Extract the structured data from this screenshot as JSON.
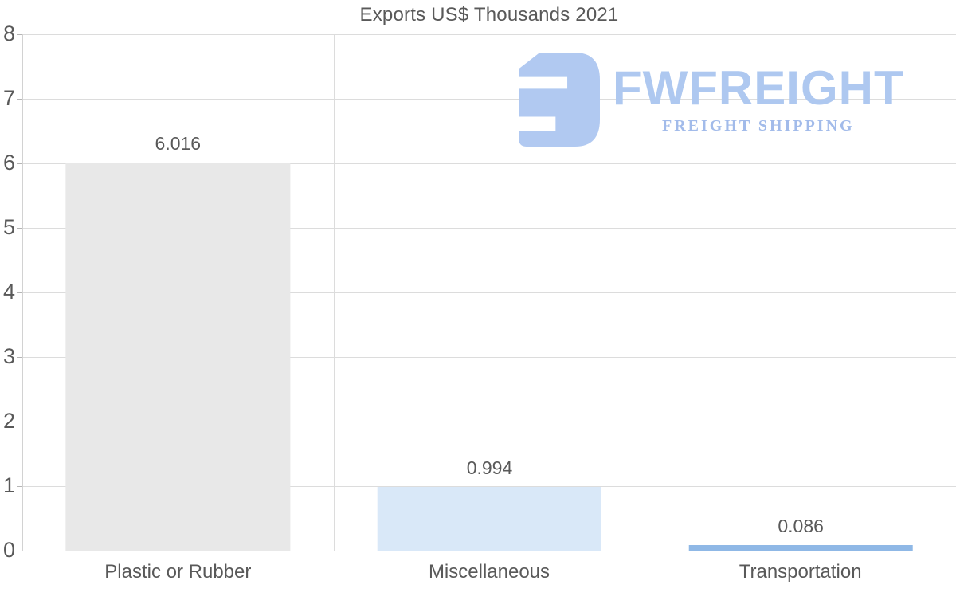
{
  "title": "Exports US$ Thousands 2021",
  "logo": {
    "wordmark": "FWFREIGHT",
    "subtext": "FREIGHT SHIPPING",
    "mark_color": "#b1c9f1",
    "wordmark_color": "#aec8f0",
    "subtext_color": "#a2bbea"
  },
  "chart_data": {
    "type": "bar",
    "title": "Exports US$ Thousands 2021",
    "categories": [
      "Plastic or Rubber",
      "Miscellaneous",
      "Transportation"
    ],
    "values": [
      6.016,
      0.994,
      0.086
    ],
    "value_labels": [
      "6.016",
      "0.994",
      "0.086"
    ],
    "bar_colors": [
      "#e8e8e8",
      "#d9e8f8",
      "#8fb8e6"
    ],
    "xlabel": "",
    "ylabel": "",
    "ylim": [
      0,
      8
    ],
    "yticks": [
      0,
      1,
      2,
      3,
      4,
      5,
      6,
      7,
      8
    ],
    "grid": "horizontal gridlines with vertical category separators",
    "legend": "none"
  },
  "colors": {
    "background": "#ffffff",
    "text": "#595959",
    "gridline": "#dcdcdc",
    "axis": "#d2d2d2"
  }
}
